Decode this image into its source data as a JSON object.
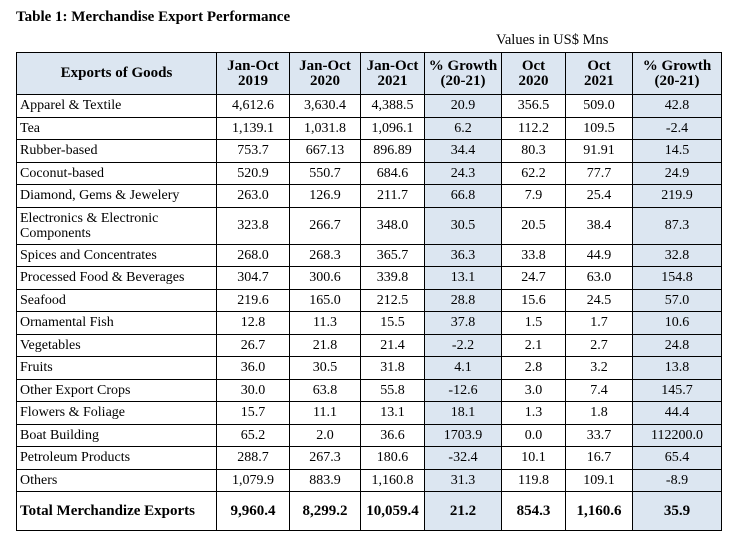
{
  "title": "Table 1: Merchandise Export Performance",
  "units": "Values in US$ Mns",
  "header": {
    "goods": "Exports of Goods",
    "col1": [
      "Jan-Oct",
      "2019"
    ],
    "col2": [
      "Jan-Oct",
      "2020"
    ],
    "col3": [
      "Jan-Oct",
      "2021"
    ],
    "col4": [
      "% Growth",
      "(20-21)"
    ],
    "col5": [
      "Oct",
      "2020"
    ],
    "col6": [
      "Oct",
      "2021"
    ],
    "col7": [
      "% Growth",
      "(20-21)"
    ]
  },
  "rows": [
    {
      "name": "Apparel & Textile",
      "v": [
        "4,612.6",
        "3,630.4",
        "4,388.5",
        "20.9",
        "356.5",
        "509.0",
        "42.8"
      ]
    },
    {
      "name": "Tea",
      "v": [
        "1,139.1",
        "1,031.8",
        "1,096.1",
        "6.2",
        "112.2",
        "109.5",
        "-2.4"
      ]
    },
    {
      "name": "Rubber-based",
      "v": [
        "753.7",
        "667.13",
        "896.89",
        "34.4",
        "80.3",
        "91.91",
        "14.5"
      ]
    },
    {
      "name": "Coconut-based",
      "v": [
        "520.9",
        "550.7",
        "684.6",
        "24.3",
        "62.2",
        "77.7",
        "24.9"
      ]
    },
    {
      "name": "Diamond, Gems & Jewelery",
      "v": [
        "263.0",
        "126.9",
        "211.7",
        "66.8",
        "7.9",
        "25.4",
        "219.9"
      ]
    },
    {
      "name": "Electronics & Electronic Components",
      "v": [
        "323.8",
        "266.7",
        "348.0",
        "30.5",
        "20.5",
        "38.4",
        "87.3"
      ]
    },
    {
      "name": "Spices and Concentrates",
      "v": [
        "268.0",
        "268.3",
        "365.7",
        "36.3",
        "33.8",
        "44.9",
        "32.8"
      ]
    },
    {
      "name": "Processed Food & Beverages",
      "v": [
        "304.7",
        "300.6",
        "339.8",
        "13.1",
        "24.7",
        "63.0",
        "154.8"
      ]
    },
    {
      "name": "Seafood",
      "v": [
        "219.6",
        "165.0",
        "212.5",
        "28.8",
        "15.6",
        "24.5",
        "57.0"
      ]
    },
    {
      "name": "Ornamental Fish",
      "v": [
        "12.8",
        "11.3",
        "15.5",
        "37.8",
        "1.5",
        "1.7",
        "10.6"
      ]
    },
    {
      "name": "Vegetables",
      "v": [
        "26.7",
        "21.8",
        "21.4",
        "-2.2",
        "2.1",
        "2.7",
        "24.8"
      ]
    },
    {
      "name": "Fruits",
      "v": [
        "36.0",
        "30.5",
        "31.8",
        "4.1",
        "2.8",
        "3.2",
        "13.8"
      ]
    },
    {
      "name": "Other Export Crops",
      "v": [
        "30.0",
        "63.8",
        "55.8",
        "-12.6",
        "3.0",
        "7.4",
        "145.7"
      ]
    },
    {
      "name": "Flowers & Foliage",
      "v": [
        "15.7",
        "11.1",
        "13.1",
        "18.1",
        "1.3",
        "1.8",
        "44.4"
      ]
    },
    {
      "name": "Boat Building",
      "v": [
        "65.2",
        "2.0",
        "36.6",
        "1703.9",
        "0.0",
        "33.7",
        "112200.0"
      ]
    },
    {
      "name": "Petroleum Products",
      "v": [
        "288.7",
        "267.3",
        "180.6",
        "-32.4",
        "10.1",
        "16.7",
        "65.4"
      ]
    },
    {
      "name": "Others",
      "v": [
        "1,079.9",
        "883.9",
        "1,160.8",
        "31.3",
        "119.8",
        "109.1",
        "-8.9"
      ]
    }
  ],
  "total": {
    "name": "Total Merchandize Exports",
    "v": [
      "9,960.4",
      "8,299.2",
      "10,059.4",
      "21.2",
      "854.3",
      "1,160.6",
      "35.9"
    ]
  }
}
